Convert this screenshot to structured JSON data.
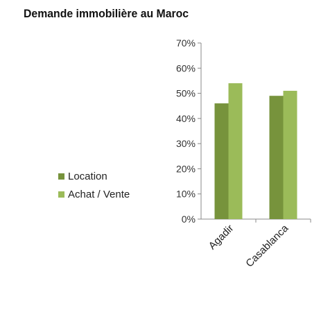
{
  "chart_data": {
    "type": "bar",
    "title": "Demande immobilière au Maroc",
    "categories": [
      "Agadir",
      "Casablanca"
    ],
    "series": [
      {
        "name": "Location",
        "values": [
          0.46,
          0.49
        ],
        "color": "#77933c"
      },
      {
        "name": "Achat / Vente",
        "values": [
          0.54,
          0.51
        ],
        "color": "#9bbb59"
      }
    ],
    "y_ticks": [
      "0%",
      "10%",
      "20%",
      "30%",
      "40%",
      "50%",
      "60%",
      "70%"
    ],
    "ylim": [
      0,
      0.7
    ],
    "grid": false,
    "legend_position": "left"
  }
}
